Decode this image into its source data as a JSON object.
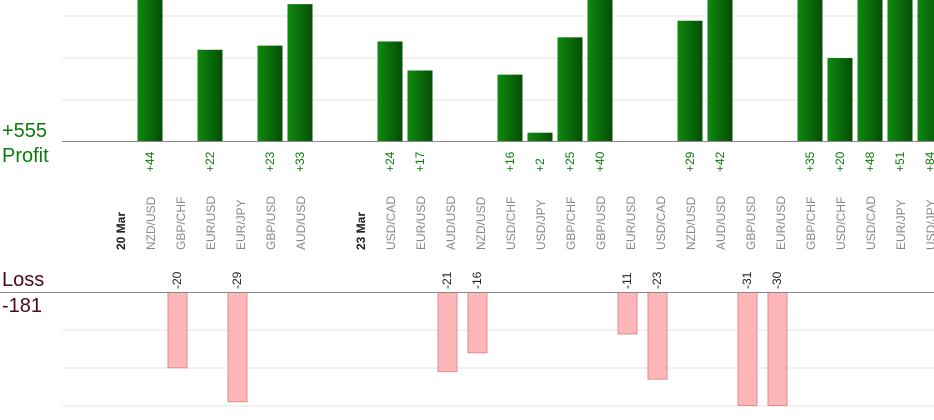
{
  "summary": {
    "profit_total": "+555",
    "profit_label": "Profit",
    "loss_label": "Loss",
    "loss_total": "-181"
  },
  "colors": {
    "profit_bar": "#0b6b0b",
    "profit_text": "#0a7a0a",
    "loss_fill": "#ffb6b9",
    "loss_stroke": "#e58a8f",
    "loss_text": "#4a0a14",
    "date_text": "#222222",
    "pair_text": "#888888",
    "grid": "#e6e6e6",
    "axis": "#888888"
  },
  "chart_data": {
    "type": "bar",
    "categories": [
      "20 Mar",
      "NZD/USD",
      "GBP/CHF",
      "EUR/USD",
      "EUR/JPY",
      "GBP/USD",
      "AUD/USD",
      "",
      "23 Mar",
      "USD/CAD",
      "EUR/USD",
      "AUD/USD",
      "NZD/USD",
      "USD/CHF",
      "USD/JPY",
      "GBP/CHF",
      "GBP/USD",
      "EUR/USD",
      "USD/CAD",
      "NZD/USD",
      "AUD/USD",
      "GBP/USD",
      "EUR/USD",
      "GBP/CHF",
      "USD/CHF",
      "USD/CAD",
      "EUR/JPY",
      "USD/JPY"
    ],
    "date_separators": [
      0,
      8
    ],
    "values": [
      null,
      44,
      -20,
      22,
      -29,
      23,
      33,
      null,
      null,
      24,
      17,
      -21,
      -16,
      16,
      2,
      25,
      40,
      -11,
      -23,
      29,
      42,
      -31,
      -30,
      35,
      20,
      48,
      51,
      84
    ],
    "value_labels": [
      "",
      "+44",
      "-20",
      "+22",
      "-29",
      "+23",
      "+33",
      "",
      "",
      "+24",
      "+17",
      "-21",
      "-16",
      "+16",
      "+2",
      "+25",
      "+40",
      "-11",
      "-23",
      "+29",
      "+42",
      "-31",
      "-30",
      "+35",
      "+20",
      "+48",
      "+51",
      "+84"
    ],
    "profit_axis_max": 34,
    "loss_axis_min": -30,
    "grid": true
  }
}
